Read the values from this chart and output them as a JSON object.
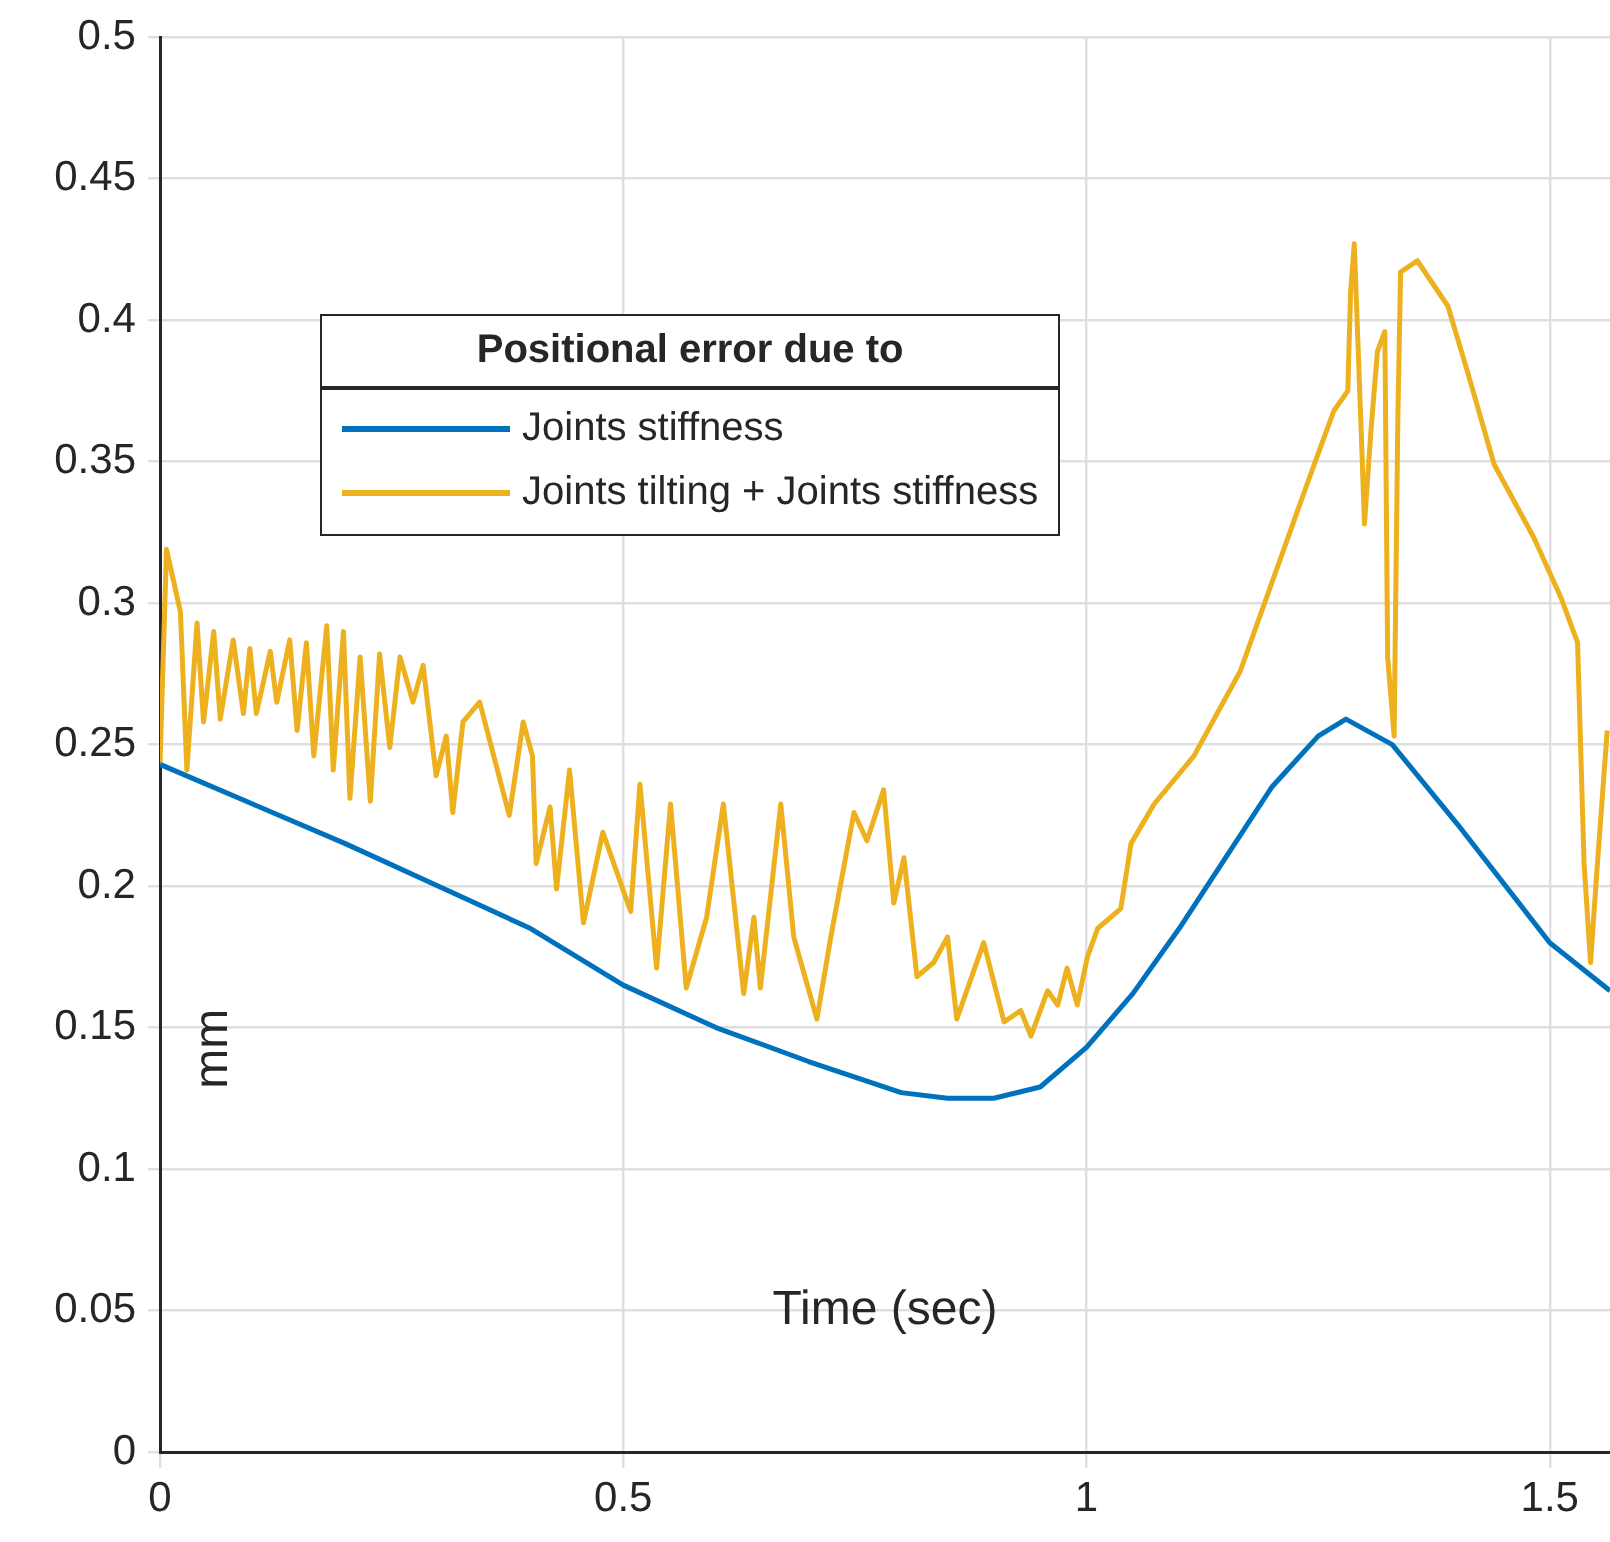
{
  "chart_data": {
    "type": "line",
    "xlabel": "Time (sec)",
    "ylabel": "mm",
    "legend_title": "Positional error due to",
    "xlim": [
      0,
      1.565
    ],
    "ylim": [
      0,
      0.5
    ],
    "xticks": [
      0,
      0.5,
      1,
      1.5
    ],
    "yticks": [
      0,
      0.05,
      0.1,
      0.15,
      0.2,
      0.25,
      0.3,
      0.35,
      0.4,
      0.45,
      0.5
    ],
    "grid": true,
    "legend": "top left",
    "marker": "none",
    "line_style": "solid",
    "series": [
      {
        "name": "Joints stiffness",
        "color": "#0072bd",
        "x": [
          0,
          0.1,
          0.2,
          0.3,
          0.4,
          0.5,
          0.6,
          0.7,
          0.8,
          0.85,
          0.9,
          0.95,
          1.0,
          1.05,
          1.1,
          1.15,
          1.2,
          1.25,
          1.28,
          1.33,
          1.4,
          1.5,
          1.565
        ],
        "values": [
          0.243,
          0.229,
          0.215,
          0.2,
          0.185,
          0.165,
          0.15,
          0.138,
          0.127,
          0.125,
          0.125,
          0.129,
          0.143,
          0.162,
          0.185,
          0.21,
          0.235,
          0.253,
          0.259,
          0.25,
          0.222,
          0.18,
          0.163
        ]
      },
      {
        "name": "Joints tilting + Joints stiffness",
        "color": "#edb120",
        "x": [
          0,
          0.007,
          0.022,
          0.029,
          0.04,
          0.047,
          0.058,
          0.065,
          0.079,
          0.09,
          0.097,
          0.104,
          0.119,
          0.126,
          0.14,
          0.148,
          0.158,
          0.166,
          0.18,
          0.187,
          0.198,
          0.205,
          0.216,
          0.227,
          0.237,
          0.248,
          0.259,
          0.273,
          0.284,
          0.298,
          0.309,
          0.316,
          0.327,
          0.345,
          0.377,
          0.392,
          0.402,
          0.406,
          0.421,
          0.428,
          0.442,
          0.457,
          0.478,
          0.508,
          0.518,
          0.536,
          0.551,
          0.568,
          0.59,
          0.608,
          0.63,
          0.641,
          0.648,
          0.67,
          0.684,
          0.709,
          0.724,
          0.749,
          0.763,
          0.781,
          0.792,
          0.803,
          0.817,
          0.835,
          0.85,
          0.86,
          0.889,
          0.911,
          0.929,
          0.94,
          0.958,
          0.969,
          0.979,
          0.99,
          1.001,
          1.012,
          1.037,
          1.048,
          1.073,
          1.116,
          1.166,
          1.202,
          1.238,
          1.267,
          1.282,
          1.285,
          1.289,
          1.296,
          1.3,
          1.307,
          1.314,
          1.322,
          1.325,
          1.332,
          1.336,
          1.339,
          1.357,
          1.39,
          1.411,
          1.44,
          1.483,
          1.512,
          1.53,
          1.537,
          1.544,
          1.551,
          1.562
        ],
        "values": [
          0.243,
          0.319,
          0.297,
          0.241,
          0.293,
          0.258,
          0.29,
          0.259,
          0.287,
          0.261,
          0.284,
          0.261,
          0.283,
          0.265,
          0.287,
          0.255,
          0.286,
          0.246,
          0.292,
          0.241,
          0.29,
          0.231,
          0.281,
          0.23,
          0.282,
          0.249,
          0.281,
          0.265,
          0.278,
          0.239,
          0.253,
          0.226,
          0.258,
          0.265,
          0.225,
          0.258,
          0.246,
          0.208,
          0.228,
          0.199,
          0.241,
          0.187,
          0.219,
          0.191,
          0.236,
          0.171,
          0.229,
          0.164,
          0.189,
          0.229,
          0.162,
          0.189,
          0.164,
          0.229,
          0.182,
          0.153,
          0.182,
          0.226,
          0.216,
          0.234,
          0.194,
          0.21,
          0.168,
          0.173,
          0.182,
          0.153,
          0.18,
          0.152,
          0.156,
          0.147,
          0.163,
          0.158,
          0.171,
          0.158,
          0.175,
          0.185,
          0.192,
          0.215,
          0.229,
          0.246,
          0.276,
          0.309,
          0.342,
          0.368,
          0.375,
          0.41,
          0.427,
          0.365,
          0.328,
          0.361,
          0.389,
          0.396,
          0.281,
          0.253,
          0.365,
          0.417,
          0.421,
          0.405,
          0.382,
          0.349,
          0.323,
          0.302,
          0.286,
          0.208,
          0.173,
          0.206,
          0.255
        ]
      }
    ]
  }
}
